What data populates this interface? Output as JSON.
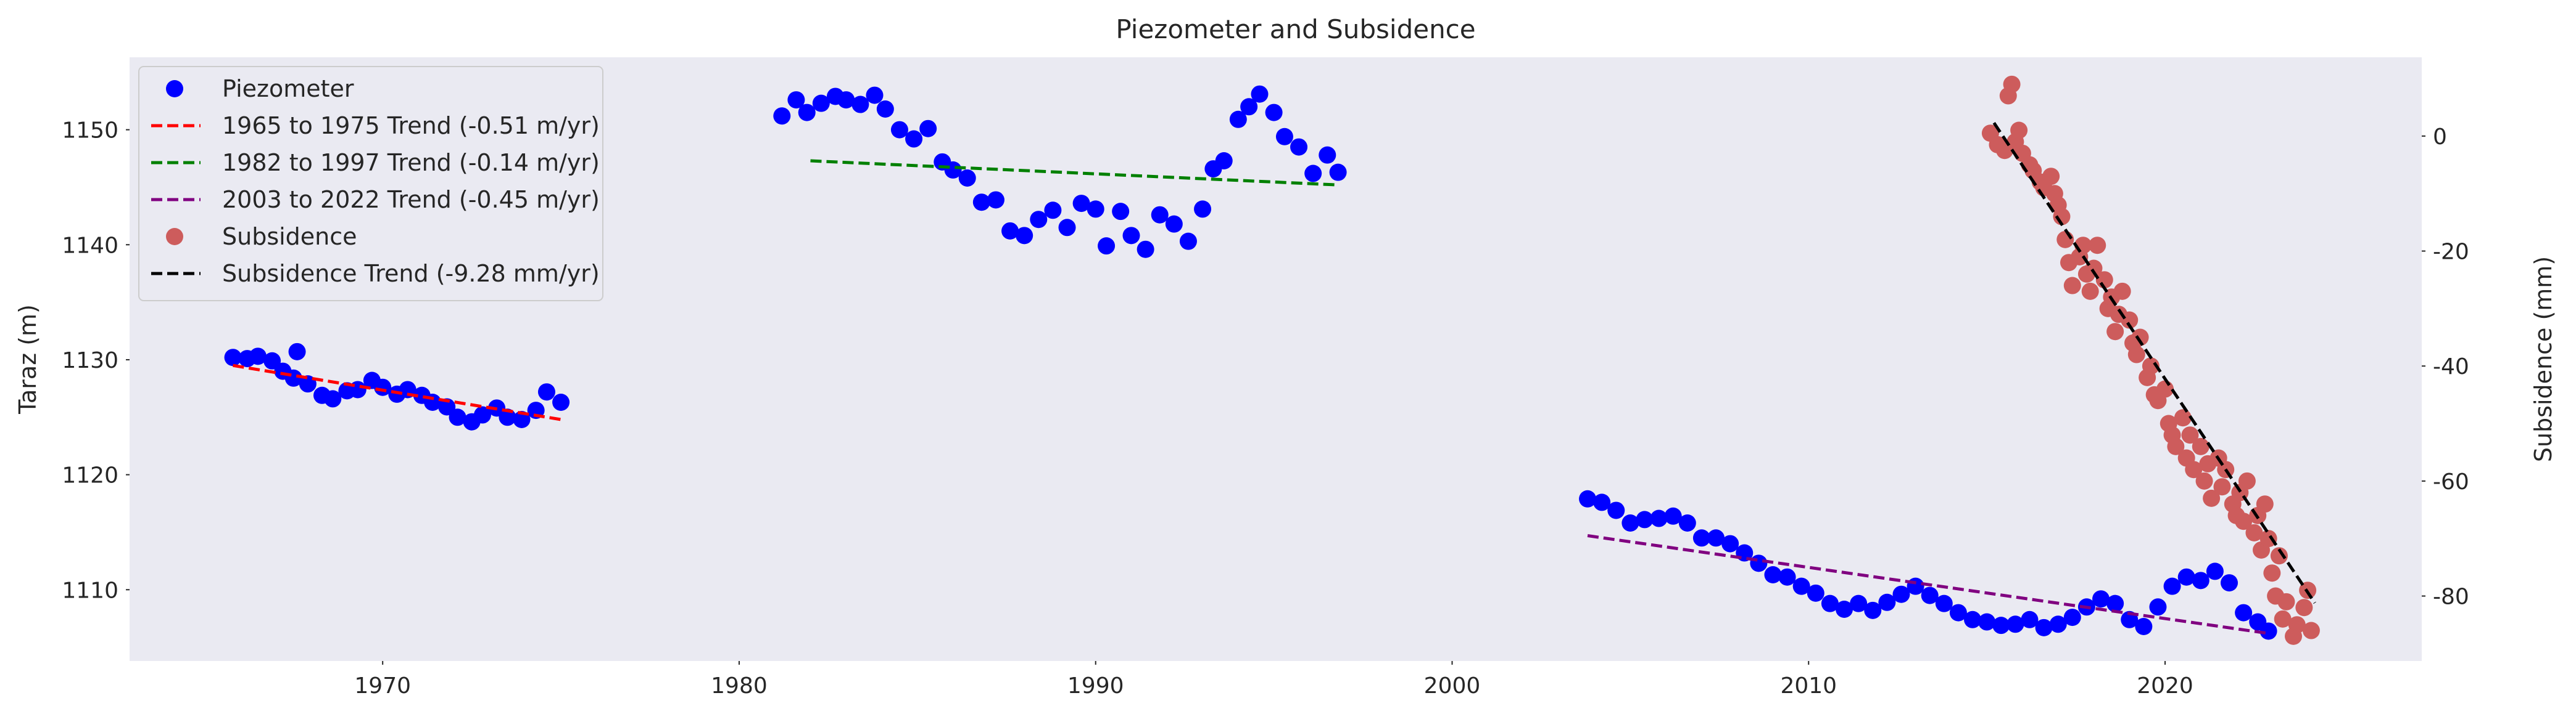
{
  "chart_data": {
    "type": "scatter",
    "title": "Piezometer and Subsidence",
    "xlabel": "",
    "ylabel": "Taraz (m)",
    "y2label": "Subsidence (mm)",
    "xlim": [
      1962.9,
      2027.2
    ],
    "ylim": [
      1103.8,
      1156.3
    ],
    "y2lim": [
      -91.3,
      13.7
    ],
    "xticks": [
      1970,
      1980,
      1990,
      2000,
      2010,
      2020
    ],
    "yticks": [
      1110,
      1120,
      1130,
      1140,
      1150
    ],
    "y2ticks": [
      -80,
      -60,
      -40,
      -20,
      0
    ],
    "grid": false,
    "background": "#eaeaf2",
    "legend_position": "top-left",
    "series": [
      {
        "name": "Piezometer",
        "kind": "scatter",
        "axis": "left",
        "color": "#0000ff",
        "points": [
          [
            1965.8,
            1130.2
          ],
          [
            1966.2,
            1130.1
          ],
          [
            1966.5,
            1130.3
          ],
          [
            1966.9,
            1129.9
          ],
          [
            1967.2,
            1129.0
          ],
          [
            1967.5,
            1128.4
          ],
          [
            1967.9,
            1127.9
          ],
          [
            1968.3,
            1126.9
          ],
          [
            1968.6,
            1126.6
          ],
          [
            1969.0,
            1127.3
          ],
          [
            1969.3,
            1127.4
          ],
          [
            1969.7,
            1128.2
          ],
          [
            1970.0,
            1127.6
          ],
          [
            1970.4,
            1127.0
          ],
          [
            1970.7,
            1127.4
          ],
          [
            1971.1,
            1126.9
          ],
          [
            1971.4,
            1126.3
          ],
          [
            1971.8,
            1125.9
          ],
          [
            1972.1,
            1125.0
          ],
          [
            1972.5,
            1124.6
          ],
          [
            1972.8,
            1125.2
          ],
          [
            1973.2,
            1125.8
          ],
          [
            1973.5,
            1125.0
          ],
          [
            1973.9,
            1124.8
          ],
          [
            1974.3,
            1125.6
          ],
          [
            1974.6,
            1127.2
          ],
          [
            1975.0,
            1126.3
          ],
          [
            1967.6,
            1130.7
          ],
          [
            1981.2,
            1151.2
          ],
          [
            1981.6,
            1152.6
          ],
          [
            1981.9,
            1151.5
          ],
          [
            1982.3,
            1152.3
          ],
          [
            1982.7,
            1152.9
          ],
          [
            1983.0,
            1152.6
          ],
          [
            1983.4,
            1152.2
          ],
          [
            1983.8,
            1153.0
          ],
          [
            1984.1,
            1151.8
          ],
          [
            1984.5,
            1150.0
          ],
          [
            1984.9,
            1149.2
          ],
          [
            1985.3,
            1150.1
          ],
          [
            1985.7,
            1147.2
          ],
          [
            1986.0,
            1146.5
          ],
          [
            1986.4,
            1145.8
          ],
          [
            1986.8,
            1143.7
          ],
          [
            1987.2,
            1143.9
          ],
          [
            1987.6,
            1141.2
          ],
          [
            1988.0,
            1140.8
          ],
          [
            1988.4,
            1142.2
          ],
          [
            1988.8,
            1143.0
          ],
          [
            1989.2,
            1141.5
          ],
          [
            1989.6,
            1143.6
          ],
          [
            1990.0,
            1143.1
          ],
          [
            1990.3,
            1139.9
          ],
          [
            1990.7,
            1142.9
          ],
          [
            1991.0,
            1140.8
          ],
          [
            1991.4,
            1139.6
          ],
          [
            1991.8,
            1142.6
          ],
          [
            1992.2,
            1141.8
          ],
          [
            1992.6,
            1140.3
          ],
          [
            1993.0,
            1143.1
          ],
          [
            1993.3,
            1146.6
          ],
          [
            1993.6,
            1147.3
          ],
          [
            1994.0,
            1150.9
          ],
          [
            1994.3,
            1152.0
          ],
          [
            1994.6,
            1153.1
          ],
          [
            1995.0,
            1151.5
          ],
          [
            1995.3,
            1149.4
          ],
          [
            1995.7,
            1148.5
          ],
          [
            1996.1,
            1146.2
          ],
          [
            1996.5,
            1147.8
          ],
          [
            1996.8,
            1146.3
          ],
          [
            2003.8,
            1117.9
          ],
          [
            2004.2,
            1117.6
          ],
          [
            2004.6,
            1116.9
          ],
          [
            2005.0,
            1115.8
          ],
          [
            2005.4,
            1116.1
          ],
          [
            2005.8,
            1116.2
          ],
          [
            2006.2,
            1116.4
          ],
          [
            2006.6,
            1115.8
          ],
          [
            2007.0,
            1114.5
          ],
          [
            2007.4,
            1114.5
          ],
          [
            2007.8,
            1114.0
          ],
          [
            2008.2,
            1113.2
          ],
          [
            2008.6,
            1112.3
          ],
          [
            2009.0,
            1111.3
          ],
          [
            2009.4,
            1111.1
          ],
          [
            2009.8,
            1110.3
          ],
          [
            2010.2,
            1109.7
          ],
          [
            2010.6,
            1108.8
          ],
          [
            2011.0,
            1108.3
          ],
          [
            2011.4,
            1108.8
          ],
          [
            2011.8,
            1108.2
          ],
          [
            2012.2,
            1108.9
          ],
          [
            2012.6,
            1109.6
          ],
          [
            2013.0,
            1110.3
          ],
          [
            2013.4,
            1109.5
          ],
          [
            2013.8,
            1108.8
          ],
          [
            2014.2,
            1108.0
          ],
          [
            2014.6,
            1107.4
          ],
          [
            2015.0,
            1107.2
          ],
          [
            2015.4,
            1106.9
          ],
          [
            2015.8,
            1107.0
          ],
          [
            2016.2,
            1107.4
          ],
          [
            2016.6,
            1106.7
          ],
          [
            2017.0,
            1107.0
          ],
          [
            2017.4,
            1107.6
          ],
          [
            2017.8,
            1108.5
          ],
          [
            2018.2,
            1109.2
          ],
          [
            2018.6,
            1108.8
          ],
          [
            2019.0,
            1107.4
          ],
          [
            2019.4,
            1106.8
          ],
          [
            2019.8,
            1108.5
          ],
          [
            2020.2,
            1110.3
          ],
          [
            2020.6,
            1111.1
          ],
          [
            2021.0,
            1110.8
          ],
          [
            2021.4,
            1111.6
          ],
          [
            2021.8,
            1110.6
          ],
          [
            2022.2,
            1108.0
          ],
          [
            2022.6,
            1107.2
          ],
          [
            2022.9,
            1106.4
          ]
        ]
      },
      {
        "name": "1965 to 1975 Trend (-0.51 m/yr)",
        "kind": "line",
        "axis": "left",
        "color": "#ff0000",
        "points": [
          [
            1965.8,
            1129.5
          ],
          [
            1975.0,
            1124.8
          ]
        ]
      },
      {
        "name": "1982 to 1997 Trend (-0.14 m/yr)",
        "kind": "line",
        "axis": "left",
        "color": "#008000",
        "points": [
          [
            1982.0,
            1147.3
          ],
          [
            1996.8,
            1145.2
          ]
        ]
      },
      {
        "name": "2003 to 2022 Trend (-0.45 m/yr)",
        "kind": "line",
        "axis": "left",
        "color": "#800080",
        "points": [
          [
            2003.8,
            1114.7
          ],
          [
            2022.9,
            1106.2
          ]
        ]
      },
      {
        "name": "Subsidence",
        "kind": "scatter",
        "axis": "right",
        "color": "#cd5c5c",
        "points": [
          [
            2015.1,
            0.5
          ],
          [
            2015.3,
            -1.5
          ],
          [
            2015.5,
            -2.5
          ],
          [
            2015.6,
            7
          ],
          [
            2015.7,
            9
          ],
          [
            2015.8,
            -1
          ],
          [
            2015.9,
            1
          ],
          [
            2016.0,
            -3
          ],
          [
            2016.2,
            -5
          ],
          [
            2016.3,
            -6
          ],
          [
            2016.5,
            -8
          ],
          [
            2016.6,
            -9
          ],
          [
            2016.8,
            -7
          ],
          [
            2016.9,
            -10
          ],
          [
            2017.0,
            -12
          ],
          [
            2017.1,
            -14
          ],
          [
            2017.2,
            -18
          ],
          [
            2017.3,
            -22
          ],
          [
            2017.4,
            -26
          ],
          [
            2017.6,
            -21
          ],
          [
            2017.7,
            -19
          ],
          [
            2017.8,
            -24
          ],
          [
            2017.9,
            -27
          ],
          [
            2018.0,
            -23
          ],
          [
            2018.1,
            -19
          ],
          [
            2018.3,
            -25
          ],
          [
            2018.4,
            -30
          ],
          [
            2018.5,
            -28
          ],
          [
            2018.6,
            -34
          ],
          [
            2018.7,
            -31
          ],
          [
            2018.8,
            -27
          ],
          [
            2019.0,
            -32
          ],
          [
            2019.1,
            -36
          ],
          [
            2019.2,
            -38
          ],
          [
            2019.3,
            -35
          ],
          [
            2019.5,
            -42
          ],
          [
            2019.6,
            -40
          ],
          [
            2019.7,
            -45
          ],
          [
            2019.8,
            -46
          ],
          [
            2020.0,
            -44
          ],
          [
            2020.1,
            -50
          ],
          [
            2020.2,
            -52
          ],
          [
            2020.3,
            -54
          ],
          [
            2020.5,
            -49
          ],
          [
            2020.6,
            -56
          ],
          [
            2020.7,
            -52
          ],
          [
            2020.8,
            -58
          ],
          [
            2021.0,
            -54
          ],
          [
            2021.1,
            -60
          ],
          [
            2021.2,
            -57
          ],
          [
            2021.3,
            -63
          ],
          [
            2021.5,
            -56
          ],
          [
            2021.6,
            -61
          ],
          [
            2021.7,
            -58
          ],
          [
            2021.9,
            -64
          ],
          [
            2022.0,
            -66
          ],
          [
            2022.1,
            -62
          ],
          [
            2022.2,
            -67
          ],
          [
            2022.3,
            -60
          ],
          [
            2022.5,
            -69
          ],
          [
            2022.6,
            -66
          ],
          [
            2022.7,
            -72
          ],
          [
            2022.8,
            -64
          ],
          [
            2022.9,
            -70
          ],
          [
            2023.0,
            -76
          ],
          [
            2023.1,
            -80
          ],
          [
            2023.2,
            -73
          ],
          [
            2023.3,
            -84
          ],
          [
            2023.4,
            -81
          ],
          [
            2023.6,
            -87
          ],
          [
            2023.7,
            -85
          ],
          [
            2023.9,
            -82
          ],
          [
            2024.0,
            -79
          ],
          [
            2024.1,
            -86
          ]
        ]
      },
      {
        "name": "Subsidence Trend (-9.28 mm/yr)",
        "kind": "line",
        "axis": "right",
        "color": "#000000",
        "points": [
          [
            2015.2,
            2.3
          ],
          [
            2024.2,
            -81.2
          ]
        ]
      }
    ]
  }
}
